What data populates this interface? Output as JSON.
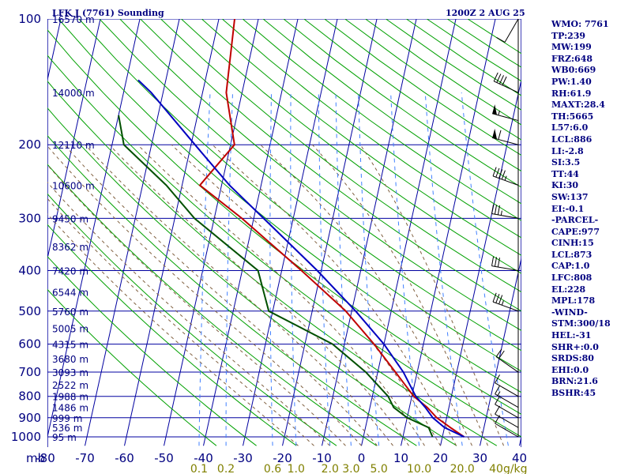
{
  "header": {
    "title": "LFK J (7761) Sounding",
    "time": "1200Z  2 AUG 25"
  },
  "indices": [
    "WMO: 7761",
    "TP:239",
    "MW:199",
    "FRZ:648",
    "WB0:669",
    "PW:1.40",
    "RH:61.9",
    "MAXT:28.4",
    "TH:5665",
    "L57:6.0",
    "LCL:886",
    "LI:-2.8",
    "SI:3.5",
    "TT:44",
    "KI:30",
    "SW:137",
    "EI:-0.1",
    "-PARCEL-",
    "CAPE:977",
    "CINH:15",
    "LCL:873",
    "CAP:1.0",
    "LFC:808",
    "EL:228",
    "MPL:178",
    "-WIND-",
    "STM:300/18",
    "HEL:-31",
    "SHR+:0.0",
    "SRDS:80",
    "EHI:0.0",
    "BRN:21.6",
    "BSHR:45"
  ],
  "colors": {
    "grid": "#0000a0",
    "dry_adiabat": "#00a000",
    "moist_adiabat": "#806040",
    "mixing_ratio": "#4080ff",
    "temperature": "#c00000",
    "dewpoint": "#005000",
    "parcel": "#0000c0",
    "text": "#000080"
  },
  "chart_data": {
    "type": "line",
    "title": "LFK J (7761) Sounding",
    "x_units_label": "mb",
    "x_ticks": [
      -80,
      -70,
      -60,
      -50,
      -40,
      -30,
      -20,
      -10,
      0,
      10,
      20,
      30,
      40
    ],
    "y_ticks": [
      100,
      200,
      300,
      400,
      500,
      600,
      700,
      800,
      900,
      1000
    ],
    "xlim": [
      -80,
      40
    ],
    "ylim": [
      1050,
      100
    ],
    "y_scale": "log",
    "height_labels": [
      {
        "p": 1000,
        "text": "95 m"
      },
      {
        "p": 950,
        "text": "536 m"
      },
      {
        "p": 900,
        "text": "999 m"
      },
      {
        "p": 850,
        "text": "1486 m"
      },
      {
        "p": 800,
        "text": "1988 m"
      },
      {
        "p": 750,
        "text": "2522 m"
      },
      {
        "p": 700,
        "text": "3093 m"
      },
      {
        "p": 650,
        "text": "3680 m"
      },
      {
        "p": 600,
        "text": "4315 m"
      },
      {
        "p": 550,
        "text": "5005 m"
      },
      {
        "p": 500,
        "text": "5760 m"
      },
      {
        "p": 450,
        "text": "6544 m"
      },
      {
        "p": 400,
        "text": "7420 m"
      },
      {
        "p": 350,
        "text": "8362 m"
      },
      {
        "p": 300,
        "text": "9450 m"
      },
      {
        "p": 250,
        "text": "10600 m"
      },
      {
        "p": 200,
        "text": "12110 m"
      },
      {
        "p": 150,
        "text": "14000 m"
      },
      {
        "p": 100,
        "text": "16570 m"
      }
    ],
    "mixing_ratio_labels": [
      "0.1",
      "0.2",
      "0.6",
      "1.0",
      "2.0",
      "3.0",
      "5.0",
      "10.0",
      "20.0",
      "40g/kg"
    ],
    "series": [
      {
        "key": "temperature",
        "points": [
          [
            1000,
            25.5
          ],
          [
            950,
            21.5
          ],
          [
            900,
            17.5
          ],
          [
            850,
            14.5
          ],
          [
            800,
            10.5
          ],
          [
            700,
            4.5
          ],
          [
            600,
            -2.5
          ],
          [
            500,
            -11.5
          ],
          [
            400,
            -25
          ],
          [
            300,
            -43
          ],
          [
            250,
            -55.5
          ],
          [
            200,
            -49
          ],
          [
            150,
            -54
          ],
          [
            100,
            -56
          ]
        ]
      },
      {
        "key": "dewpoint",
        "points": [
          [
            1000,
            17.5
          ],
          [
            950,
            16
          ],
          [
            900,
            10
          ],
          [
            850,
            6
          ],
          [
            800,
            4
          ],
          [
            700,
            -3
          ],
          [
            600,
            -13
          ],
          [
            500,
            -31
          ],
          [
            400,
            -36
          ],
          [
            300,
            -55
          ],
          [
            250,
            -64
          ],
          [
            200,
            -77
          ],
          [
            170,
            -80
          ]
        ]
      },
      {
        "key": "parcel",
        "points": [
          [
            1000,
            25.5
          ],
          [
            950,
            20
          ],
          [
            900,
            16.5
          ],
          [
            850,
            14
          ],
          [
            800,
            11
          ],
          [
            700,
            6.5
          ],
          [
            600,
            0
          ],
          [
            500,
            -9
          ],
          [
            400,
            -21
          ],
          [
            300,
            -37.5
          ],
          [
            250,
            -48
          ],
          [
            200,
            -59
          ],
          [
            150,
            -73
          ],
          [
            140,
            -77
          ]
        ]
      }
    ],
    "wind_barbs": [
      {
        "p": 1000,
        "dir": 300,
        "spd": 10
      },
      {
        "p": 950,
        "dir": 300,
        "spd": 10
      },
      {
        "p": 900,
        "dir": 300,
        "spd": 10
      },
      {
        "p": 850,
        "dir": 300,
        "spd": 15
      },
      {
        "p": 800,
        "dir": 300,
        "spd": 10
      },
      {
        "p": 700,
        "dir": 305,
        "spd": 20
      },
      {
        "p": 500,
        "dir": 290,
        "spd": 35
      },
      {
        "p": 400,
        "dir": 280,
        "spd": 30
      },
      {
        "p": 300,
        "dir": 280,
        "spd": 35
      },
      {
        "p": 250,
        "dir": 290,
        "spd": 45
      },
      {
        "p": 200,
        "dir": 285,
        "spd": 60
      },
      {
        "p": 175,
        "dir": 285,
        "spd": 55
      },
      {
        "p": 150,
        "dir": 295,
        "spd": 40
      },
      {
        "p": 100,
        "dir": 210,
        "spd": 10
      }
    ]
  }
}
